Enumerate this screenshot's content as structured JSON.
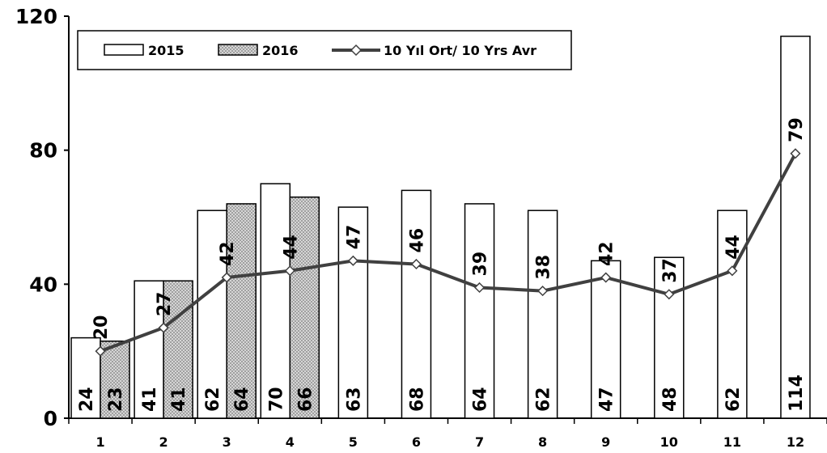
{
  "chart_data": {
    "type": "bar",
    "categories": [
      "1",
      "2",
      "3",
      "4",
      "5",
      "6",
      "7",
      "8",
      "9",
      "10",
      "11",
      "12"
    ],
    "ylim": [
      0,
      120
    ],
    "yticks": [
      "0",
      "40",
      "80",
      "120"
    ],
    "grid": false,
    "legend_position": "top-left",
    "series": [
      {
        "name": "2015",
        "kind": "bar",
        "color": "#ffffff",
        "values": [
          24,
          41,
          62,
          70,
          63,
          68,
          64,
          62,
          47,
          48,
          62,
          114
        ],
        "value_labels": [
          "24",
          "41",
          "62",
          "70",
          "63",
          "68",
          "64",
          "62",
          "47",
          "48",
          "62",
          "114"
        ]
      },
      {
        "name": "2016",
        "kind": "bar",
        "color": "#cfcfcf",
        "pattern": "dotted",
        "values": [
          23,
          41,
          64,
          66,
          null,
          null,
          null,
          null,
          null,
          null,
          null,
          null
        ],
        "value_labels": [
          "23",
          "41",
          "64",
          "66"
        ]
      },
      {
        "name": "10 Yıl Ort/ 10 Yrs Avr",
        "kind": "line",
        "color": "#404040",
        "marker": "diamond",
        "values": [
          20,
          27,
          42,
          44,
          47,
          46,
          39,
          38,
          42,
          37,
          44,
          79
        ],
        "value_labels": [
          "20",
          "27",
          "42",
          "44",
          "47",
          "46",
          "39",
          "38",
          "42",
          "37",
          "44",
          "79"
        ]
      }
    ]
  }
}
